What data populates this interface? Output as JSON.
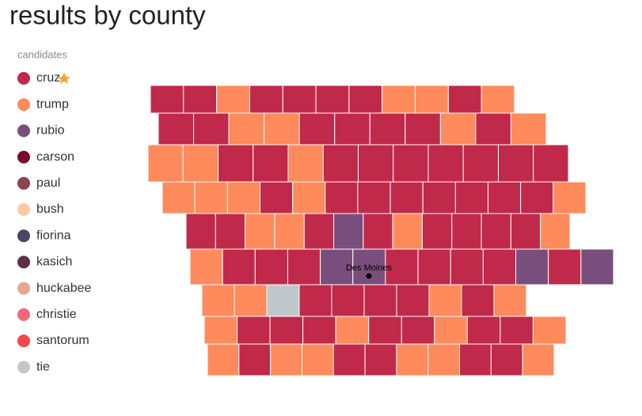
{
  "title": "results by county",
  "legend": {
    "title": "candidates",
    "items": [
      {
        "name": "cruz",
        "color": "#c0294a"
      },
      {
        "name": "trump",
        "color": "#ff8a5b"
      },
      {
        "name": "rubio",
        "color": "#7a4e7c"
      },
      {
        "name": "carson",
        "color": "#7b0a2a"
      },
      {
        "name": "paul",
        "color": "#8d4350"
      },
      {
        "name": "bush",
        "color": "#fdc9a2"
      },
      {
        "name": "fiorina",
        "color": "#4e4465"
      },
      {
        "name": "kasich",
        "color": "#5c3048"
      },
      {
        "name": "huckabee",
        "color": "#e5a592"
      },
      {
        "name": "christie",
        "color": "#f3687a"
      },
      {
        "name": "santorum",
        "color": "#f24848"
      },
      {
        "name": "tie",
        "color": "#c0c8cc"
      }
    ]
  },
  "city": "Des Moines",
  "county_rows": [
    [
      "cruz",
      "cruz",
      "trump",
      "cruz",
      "cruz",
      "cruz",
      "cruz",
      "trump",
      "trump",
      "cruz",
      "trump"
    ],
    [
      "cruz",
      "cruz",
      "trump",
      "trump",
      "cruz",
      "cruz",
      "cruz",
      "cruz",
      "trump",
      "cruz",
      "trump"
    ],
    [
      "trump",
      "trump",
      "cruz",
      "cruz",
      "trump",
      "cruz",
      "cruz",
      "cruz",
      "cruz",
      "cruz",
      "cruz",
      "cruz"
    ],
    [
      "trump",
      "trump",
      "trump",
      "cruz",
      "trump",
      "cruz",
      "cruz",
      "cruz",
      "cruz",
      "cruz",
      "cruz",
      "cruz",
      "trump"
    ],
    [
      "cruz",
      "cruz",
      "trump",
      "trump",
      "cruz",
      "rubio",
      "cruz",
      "trump",
      "cruz",
      "cruz",
      "cruz",
      "cruz",
      "trump"
    ],
    [
      "trump",
      "cruz",
      "cruz",
      "cruz",
      "rubio",
      "rubio",
      "cruz",
      "cruz",
      "cruz",
      "cruz",
      "rubio",
      "cruz",
      "rubio"
    ],
    [
      "trump",
      "trump",
      "tie",
      "cruz",
      "cruz",
      "cruz",
      "cruz",
      "trump",
      "cruz",
      "trump"
    ],
    [
      "trump",
      "cruz",
      "cruz",
      "cruz",
      "trump",
      "cruz",
      "cruz",
      "trump",
      "cruz",
      "cruz",
      "trump"
    ],
    [
      "trump",
      "cruz",
      "trump",
      "trump",
      "cruz",
      "cruz",
      "trump",
      "trump",
      "cruz",
      "cruz",
      "trump"
    ]
  ]
}
